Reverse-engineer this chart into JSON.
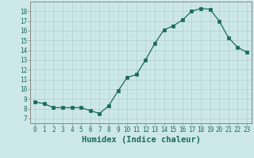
{
  "xlabel": "Humidex (Indice chaleur)",
  "x": [
    0,
    1,
    2,
    3,
    4,
    5,
    6,
    7,
    8,
    9,
    10,
    11,
    12,
    13,
    14,
    15,
    16,
    17,
    18,
    19,
    20,
    21,
    22,
    23
  ],
  "y": [
    8.7,
    8.5,
    8.1,
    8.1,
    8.1,
    8.1,
    7.8,
    7.5,
    8.3,
    9.8,
    11.2,
    11.5,
    13.0,
    14.7,
    16.1,
    16.5,
    17.1,
    18.0,
    18.3,
    18.2,
    17.0,
    15.3,
    14.3,
    13.8
  ],
  "line_color": "#1a6b5a",
  "marker": "s",
  "marker_size": 2.2,
  "bg_color": "#cde8e8",
  "grid_major_color": "#b0cccc",
  "grid_minor_color": "#c2dcdc",
  "xlim": [
    -0.5,
    23.5
  ],
  "ylim": [
    7,
    19
  ],
  "yticks": [
    7,
    8,
    9,
    10,
    11,
    12,
    13,
    14,
    15,
    16,
    17,
    18
  ],
  "xticks": [
    0,
    1,
    2,
    3,
    4,
    5,
    6,
    7,
    8,
    9,
    10,
    11,
    12,
    13,
    14,
    15,
    16,
    17,
    18,
    19,
    20,
    21,
    22,
    23
  ],
  "tick_fontsize": 5.5,
  "xlabel_fontsize": 7.5,
  "axis_color": "#1a6b5a",
  "spine_color": "#888888"
}
